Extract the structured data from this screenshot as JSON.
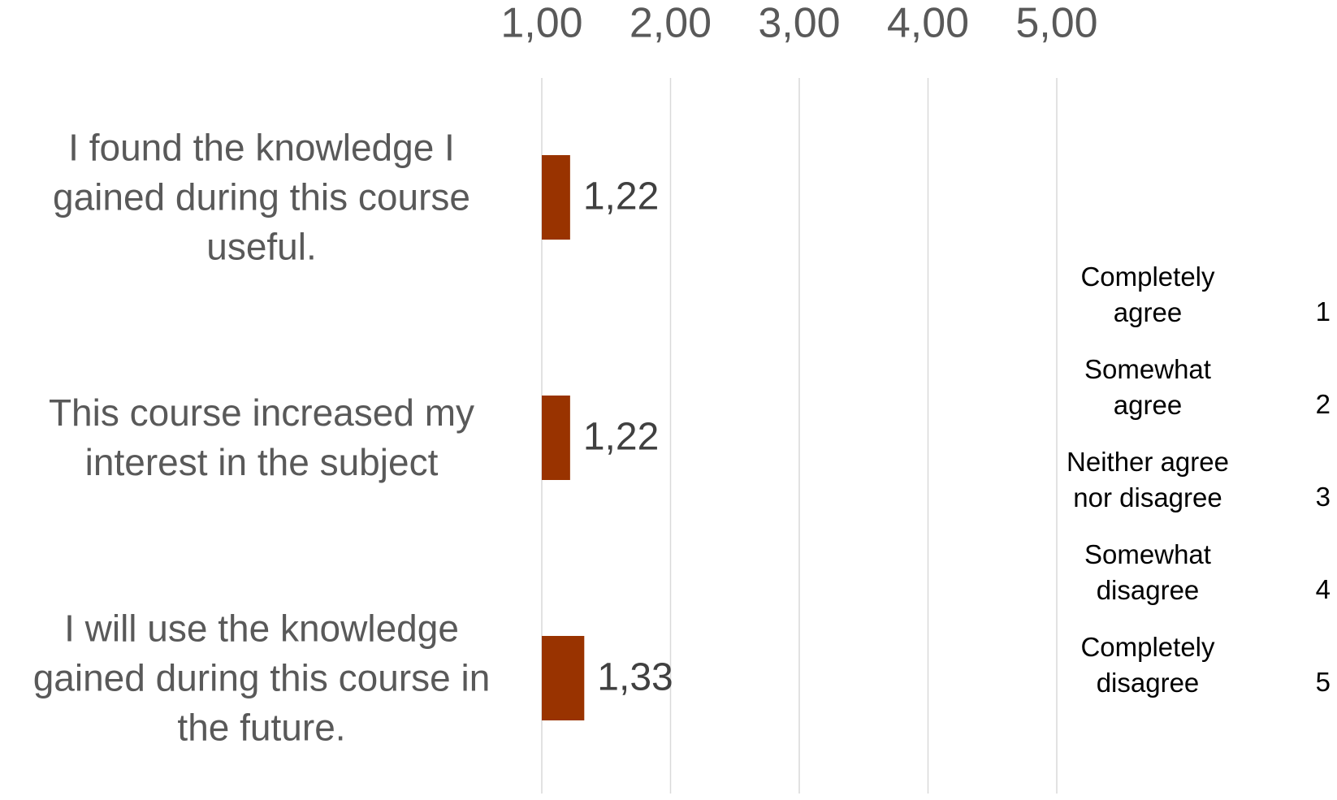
{
  "chart_data": {
    "type": "barh",
    "categories": [
      "I found the knowledge I gained during this course useful.",
      "This course increased my interest in the subject",
      "I will use the knowledge gained during this course in the future."
    ],
    "values": [
      1.22,
      1.22,
      1.33
    ],
    "value_labels": [
      "1,22",
      "1,22",
      "1,33"
    ],
    "color": "#993300",
    "xlim": [
      1,
      5
    ],
    "xticks": [
      {
        "value": 1,
        "label": "1,00"
      },
      {
        "value": 2,
        "label": "2,00"
      },
      {
        "value": 3,
        "label": "3,00"
      },
      {
        "value": 4,
        "label": "4,00"
      },
      {
        "value": 5,
        "label": "5,00"
      }
    ],
    "grid": true,
    "legend_items": [
      {
        "label": "Completely agree",
        "value": 1
      },
      {
        "label": "Somewhat agree",
        "value": 2
      },
      {
        "label": "Neither agree nor disagree",
        "value": 3
      },
      {
        "label": "Somewhat disagree",
        "value": 4
      },
      {
        "label": "Completely disagree",
        "value": 5
      }
    ]
  }
}
